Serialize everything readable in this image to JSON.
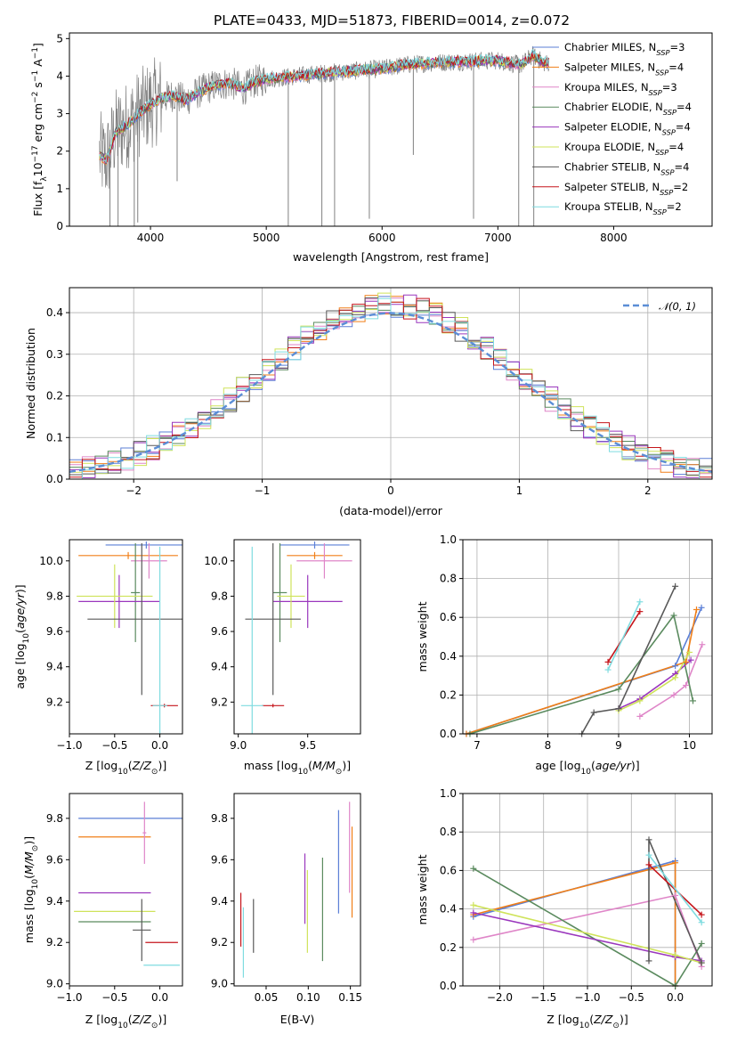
{
  "figure": {
    "title": "PLATE=0433, MJD=51873, FIBERID=0014, z=0.072"
  },
  "colors": {
    "Chabrier MILES": "#5b7fd6",
    "Salpeter MILES": "#f07f18",
    "Kroupa MILES": "#df86c8",
    "Chabrier ELODIE": "#5a8a5e",
    "Salpeter ELODIE": "#9a37bd",
    "Kroupa ELODIE": "#cfe35a",
    "Chabrier STELIB": "#595959",
    "Salpeter STELIB": "#c5151b",
    "Kroupa STELIB": "#7fdce0",
    "data": "#808080",
    "gauss": "#5b8ed6"
  },
  "chart_data": [
    {
      "id": "spectrum",
      "type": "line",
      "title": "PLATE=0433, MJD=51873, FIBERID=0014, z=0.072",
      "xlabel": "wavelength [Angstrom, rest frame]",
      "ylabel_parts": [
        "Flux [f",
        "λ",
        "10",
        "−17",
        " erg cm",
        "−2",
        " s",
        "−1",
        " A",
        "−1",
        "]"
      ],
      "xlim": [
        3300,
        8850
      ],
      "ylim": [
        0,
        5.15
      ],
      "xticks": [
        4000,
        5000,
        6000,
        7000,
        8000
      ],
      "yticks": [
        0,
        1,
        2,
        3,
        4,
        5
      ],
      "legend_position": "right",
      "legend": [
        {
          "pre": "Chabrier MILES, N",
          "sub": "SSP",
          "post": "=3",
          "color": "#5b7fd6"
        },
        {
          "pre": "Salpeter MILES, N",
          "sub": "SSP",
          "post": "=4",
          "color": "#f07f18"
        },
        {
          "pre": "Kroupa MILES, N",
          "sub": "SSP",
          "post": "=3",
          "color": "#df86c8"
        },
        {
          "pre": "Chabrier ELODIE, N",
          "sub": "SSP",
          "post": "=4",
          "color": "#5a8a5e"
        },
        {
          "pre": "Salpeter ELODIE, N",
          "sub": "SSP",
          "post": "=4",
          "color": "#9a37bd"
        },
        {
          "pre": "Kroupa ELODIE, N",
          "sub": "SSP",
          "post": "=4",
          "color": "#cfe35a"
        },
        {
          "pre": "Chabrier STELIB, N",
          "sub": "SSP",
          "post": "=4",
          "color": "#595959"
        },
        {
          "pre": "Salpeter STELIB, N",
          "sub": "SSP",
          "post": "=2",
          "color": "#c5151b"
        },
        {
          "pre": "Kroupa STELIB, N",
          "sub": "SSP",
          "post": "=2",
          "color": "#7fdce0"
        }
      ],
      "continuum": {
        "x": [
          3560,
          3620,
          3700,
          3800,
          3900,
          4000,
          4100,
          4200,
          4300,
          4400,
          4500,
          4600,
          4700,
          4800,
          4900,
          5000,
          5200,
          5400,
          5600,
          5800,
          6000,
          6200,
          6400,
          6600,
          6800,
          7000,
          7100,
          7200,
          7300,
          7400
        ],
        "y": [
          1.9,
          1.75,
          2.5,
          2.7,
          3.0,
          3.25,
          3.4,
          3.5,
          3.35,
          3.55,
          3.7,
          3.78,
          3.82,
          3.65,
          3.85,
          3.92,
          3.98,
          4.05,
          4.1,
          4.15,
          4.2,
          4.3,
          4.35,
          4.38,
          4.4,
          4.42,
          4.35,
          4.3,
          4.55,
          4.35
        ]
      },
      "absorption_lines": [
        {
          "x": 3650,
          "y": 0
        },
        {
          "x": 3720,
          "y": 0
        },
        {
          "x": 3860,
          "y": 0
        },
        {
          "x": 3890,
          "y": 0.1
        },
        {
          "x": 4230,
          "y": 1.2
        },
        {
          "x": 5190,
          "y": 0
        },
        {
          "x": 5480,
          "y": 0
        },
        {
          "x": 5590,
          "y": 0
        },
        {
          "x": 5890,
          "y": 0.2
        },
        {
          "x": 6270,
          "y": 1.9
        },
        {
          "x": 6790,
          "y": 0.2
        },
        {
          "x": 7180,
          "y": 0
        },
        {
          "x": 7310,
          "y": 0
        }
      ]
    },
    {
      "id": "residuals",
      "type": "histogram",
      "xlabel": "(data-model)/error",
      "ylabel": "Normed distribution",
      "xlim": [
        -2.5,
        2.5
      ],
      "ylim": [
        0,
        0.46
      ],
      "xticks": [
        -2,
        -1,
        0,
        1,
        2
      ],
      "yticks": [
        0.0,
        0.1,
        0.2,
        0.3,
        0.4
      ],
      "legend": "𝒩(0, 1)",
      "legend_position": "top-right",
      "grid": true,
      "bin_edges_from": -2.5,
      "bin_width": 0.1,
      "series": [
        {
          "name": "Chabrier MILES",
          "values": [
            0.03,
            0.03,
            0.04,
            0.05,
            0.05,
            0.06,
            0.07,
            0.08,
            0.09,
            0.1,
            0.11,
            0.12,
            0.14,
            0.15,
            0.17,
            0.19,
            0.2,
            0.22,
            0.24,
            0.25,
            0.27,
            0.29,
            0.31,
            0.32,
            0.33,
            0.35,
            0.36,
            0.37,
            0.37,
            0.38,
            0.38,
            0.39,
            0.38,
            0.39,
            0.37,
            0.36,
            0.35,
            0.34,
            0.33,
            0.31,
            0.29,
            0.28,
            0.26,
            0.24,
            0.22,
            0.2,
            0.18,
            0.16,
            0.14,
            0.13,
            0.11
          ]
        }
      ]
    },
    {
      "id": "age-vs-Z",
      "type": "scatter",
      "xlabel": "Z [log10(Z/Z⊙)]",
      "ylabel": "age  [log10(age/yr)]",
      "xlim": [
        -1.0,
        0.25
      ],
      "ylim": [
        9.02,
        10.12
      ],
      "xticks": [
        -1.0,
        -0.5,
        0.0
      ],
      "yticks": [
        9.2,
        9.4,
        9.6,
        9.8,
        10.0
      ],
      "points": [
        {
          "x": -0.15,
          "xerr": 0.45,
          "y": 10.09,
          "yerr": 0.02,
          "color": "#5b7fd6"
        },
        {
          "x": -0.35,
          "xerr": 0.55,
          "y": 10.03,
          "yerr": 0.02,
          "color": "#f07f18"
        },
        {
          "x": -0.12,
          "xerr": 0.2,
          "y": 10.0,
          "yerr": 0.1,
          "color": "#df86c8"
        },
        {
          "x": -0.27,
          "xerr": 0.05,
          "y": 9.82,
          "yerr": 0.28,
          "color": "#5a8a5e"
        },
        {
          "x": -0.45,
          "xerr": 0.45,
          "y": 9.77,
          "yerr": 0.15,
          "color": "#9a37bd"
        },
        {
          "x": -0.5,
          "xerr": 0.42,
          "y": 9.8,
          "yerr": 0.18,
          "color": "#cfe35a"
        },
        {
          "x": -0.2,
          "xerr": 0.6,
          "y": 9.67,
          "yerr": 0.43,
          "color": "#595959"
        },
        {
          "x": 0.05,
          "xerr": 0.15,
          "y": 9.18,
          "yerr": 0.01,
          "color": "#c5151b"
        },
        {
          "x": 0.0,
          "xerr": 0.08,
          "y": 9.18,
          "yerr": 0.9,
          "color": "#7fdce0"
        }
      ]
    },
    {
      "id": "age-vs-mass",
      "type": "scatter",
      "xlabel": "mass [log10(M/M⊙)]",
      "ylabel": "",
      "xlim": [
        8.97,
        9.88
      ],
      "ylim": [
        9.02,
        10.12
      ],
      "xticks": [
        9.0,
        9.5
      ],
      "yticks": [
        9.2,
        9.4,
        9.6,
        9.8,
        10.0
      ],
      "points": [
        {
          "x": 9.55,
          "xerr": 0.25,
          "y": 10.09,
          "yerr": 0.02,
          "color": "#5b7fd6"
        },
        {
          "x": 9.55,
          "xerr": 0.2,
          "y": 10.03,
          "yerr": 0.02,
          "color": "#f07f18"
        },
        {
          "x": 9.62,
          "xerr": 0.2,
          "y": 10.0,
          "yerr": 0.1,
          "color": "#df86c8"
        },
        {
          "x": 9.3,
          "xerr": 0.05,
          "y": 9.82,
          "yerr": 0.28,
          "color": "#5a8a5e"
        },
        {
          "x": 9.5,
          "xerr": 0.25,
          "y": 9.77,
          "yerr": 0.15,
          "color": "#9a37bd"
        },
        {
          "x": 9.38,
          "xerr": 0.1,
          "y": 9.8,
          "yerr": 0.18,
          "color": "#cfe35a"
        },
        {
          "x": 9.25,
          "xerr": 0.2,
          "y": 9.67,
          "yerr": 0.43,
          "color": "#595959"
        },
        {
          "x": 9.25,
          "xerr": 0.08,
          "y": 9.18,
          "yerr": 0.01,
          "color": "#c5151b"
        },
        {
          "x": 9.1,
          "xerr": 0.08,
          "y": 9.18,
          "yerr": 0.9,
          "color": "#7fdce0"
        }
      ]
    },
    {
      "id": "mass-weight-vs-age",
      "type": "line",
      "xlabel": "age  [log10(age/yr)]",
      "ylabel": "mass weight",
      "xlim": [
        6.8,
        10.32
      ],
      "ylim": [
        0,
        1.0
      ],
      "xticks": [
        7,
        8,
        9,
        10
      ],
      "yticks": [
        0.0,
        0.2,
        0.4,
        0.6,
        0.8,
        1.0
      ],
      "grid": true,
      "series": [
        {
          "name": "Chabrier MILES",
          "color": "#5b7fd6",
          "x": [
            6.85,
            9.8,
            10.17
          ],
          "y": [
            0.0,
            0.35,
            0.65
          ]
        },
        {
          "name": "Salpeter MILES",
          "color": "#f07f18",
          "x": [
            6.85,
            9.95,
            10.1
          ],
          "y": [
            0.0,
            0.37,
            0.64
          ]
        },
        {
          "name": "Kroupa MILES",
          "color": "#df86c8",
          "x": [
            9.3,
            9.78,
            9.95,
            10.18
          ],
          "y": [
            0.09,
            0.2,
            0.25,
            0.46
          ]
        },
        {
          "name": "Chabrier ELODIE",
          "color": "#5a8a5e",
          "x": [
            6.9,
            9.0,
            9.78,
            10.05
          ],
          "y": [
            0.0,
            0.23,
            0.61,
            0.17
          ]
        },
        {
          "name": "Salpeter ELODIE",
          "color": "#9a37bd",
          "x": [
            9.0,
            9.3,
            9.8,
            10.02
          ],
          "y": [
            0.13,
            0.18,
            0.31,
            0.38
          ]
        },
        {
          "name": "Kroupa ELODIE",
          "color": "#cfe35a",
          "x": [
            9.0,
            9.3,
            9.8,
            10.0
          ],
          "y": [
            0.12,
            0.17,
            0.29,
            0.42
          ]
        },
        {
          "name": "Chabrier STELIB",
          "color": "#595959",
          "x": [
            8.48,
            8.65,
            9.0,
            9.8
          ],
          "y": [
            0.0,
            0.11,
            0.13,
            0.76
          ]
        },
        {
          "name": "Salpeter STELIB",
          "color": "#c5151b",
          "x": [
            8.85,
            9.3
          ],
          "y": [
            0.37,
            0.63
          ]
        },
        {
          "name": "Kroupa STELIB",
          "color": "#7fdce0",
          "x": [
            8.85,
            9.3
          ],
          "y": [
            0.33,
            0.68
          ]
        }
      ]
    },
    {
      "id": "mass-vs-Z",
      "type": "scatter",
      "xlabel": "Z [log10(Z/Z⊙)]",
      "ylabel": "mass [log10(M/M⊙)]",
      "xlim": [
        -1.0,
        0.25
      ],
      "ylim": [
        8.99,
        9.92
      ],
      "xticks": [
        -1.0,
        -0.5,
        0.0
      ],
      "yticks": [
        9.0,
        9.2,
        9.4,
        9.6,
        9.8
      ],
      "points": [
        {
          "x": -0.3,
          "xerr": 0.6,
          "y": 9.8,
          "yerr": 0.0,
          "color": "#5b7fd6"
        },
        {
          "x": -0.5,
          "xerr": 0.4,
          "y": 9.71,
          "yerr": 0.0,
          "color": "#f07f18"
        },
        {
          "x": -0.17,
          "xerr": 0.02,
          "y": 9.73,
          "yerr": 0.15,
          "color": "#df86c8"
        },
        {
          "x": -0.5,
          "xerr": 0.4,
          "y": 9.3,
          "yerr": 0.0,
          "color": "#5a8a5e"
        },
        {
          "x": -0.5,
          "xerr": 0.4,
          "y": 9.44,
          "yerr": 0.0,
          "color": "#9a37bd"
        },
        {
          "x": -0.5,
          "xerr": 0.45,
          "y": 9.35,
          "yerr": 0.0,
          "color": "#cfe35a"
        },
        {
          "x": -0.2,
          "xerr": 0.1,
          "y": 9.26,
          "yerr": 0.15,
          "color": "#595959"
        },
        {
          "x": 0.02,
          "xerr": 0.18,
          "y": 9.2,
          "yerr": 0.0,
          "color": "#c5151b"
        },
        {
          "x": 0.02,
          "xerr": 0.2,
          "y": 9.09,
          "yerr": 0.0,
          "color": "#7fdce0"
        }
      ]
    },
    {
      "id": "mass-vs-EBV",
      "type": "scatter",
      "xlabel": "E(B-V)",
      "ylabel": "",
      "xlim": [
        0.012,
        0.162
      ],
      "ylim": [
        8.99,
        9.92
      ],
      "xticks": [
        0.05,
        0.1,
        0.15
      ],
      "yticks": [
        9.0,
        9.2,
        9.4,
        9.6,
        9.8
      ],
      "points": [
        {
          "x": 0.136,
          "y": 9.59,
          "yerr": 0.25,
          "color": "#5b7fd6"
        },
        {
          "x": 0.152,
          "y": 9.54,
          "yerr": 0.22,
          "color": "#f07f18"
        },
        {
          "x": 0.149,
          "y": 9.66,
          "yerr": 0.22,
          "color": "#df86c8"
        },
        {
          "x": 0.117,
          "y": 9.36,
          "yerr": 0.25,
          "color": "#5a8a5e"
        },
        {
          "x": 0.096,
          "y": 9.46,
          "yerr": 0.17,
          "color": "#9a37bd"
        },
        {
          "x": 0.099,
          "y": 9.35,
          "yerr": 0.2,
          "color": "#cfe35a"
        },
        {
          "x": 0.035,
          "y": 9.28,
          "yerr": 0.13,
          "color": "#595959"
        },
        {
          "x": 0.02,
          "y": 9.31,
          "yerr": 0.13,
          "color": "#c5151b"
        },
        {
          "x": 0.023,
          "y": 9.2,
          "yerr": 0.17,
          "color": "#7fdce0"
        }
      ]
    },
    {
      "id": "mass-weight-vs-Z",
      "type": "line",
      "xlabel": "Z [log10(Z/Z⊙)]",
      "ylabel": "mass weight",
      "xlim": [
        -2.42,
        0.42
      ],
      "ylim": [
        0,
        1.0
      ],
      "xticks": [
        -2.0,
        -1.5,
        -1.0,
        -0.5,
        0.0
      ],
      "yticks": [
        0.0,
        0.2,
        0.4,
        0.6,
        0.8,
        1.0
      ],
      "grid": true,
      "series": [
        {
          "name": "Chabrier MILES",
          "color": "#5b7fd6",
          "x": [
            -2.3,
            0.0,
            0.0
          ],
          "y": [
            0.36,
            0.65,
            0.0
          ]
        },
        {
          "name": "Salpeter MILES",
          "color": "#f07f18",
          "x": [
            -2.3,
            0.0,
            0.0
          ],
          "y": [
            0.37,
            0.64,
            0.0
          ]
        },
        {
          "name": "Kroupa MILES",
          "color": "#df86c8",
          "x": [
            -2.3,
            0.0,
            0.3
          ],
          "y": [
            0.24,
            0.47,
            0.1
          ]
        },
        {
          "name": "Chabrier ELODIE",
          "color": "#5a8a5e",
          "x": [
            -2.3,
            0.0,
            0.3
          ],
          "y": [
            0.61,
            0.0,
            0.22
          ]
        },
        {
          "name": "Salpeter ELODIE",
          "color": "#9a37bd",
          "x": [
            -2.3,
            0.0,
            0.3
          ],
          "y": [
            0.38,
            0.15,
            0.13
          ]
        },
        {
          "name": "Kroupa ELODIE",
          "color": "#cfe35a",
          "x": [
            -2.3,
            0.0,
            0.3
          ],
          "y": [
            0.42,
            0.16,
            0.12
          ]
        },
        {
          "name": "Chabrier STELIB",
          "color": "#595959",
          "x": [
            -0.3,
            -0.3,
            0.3
          ],
          "y": [
            0.13,
            0.76,
            0.12
          ]
        },
        {
          "name": "Salpeter STELIB",
          "color": "#c5151b",
          "x": [
            -0.3,
            0.3
          ],
          "y": [
            0.63,
            0.37
          ]
        },
        {
          "name": "Kroupa STELIB",
          "color": "#7fdce0",
          "x": [
            -0.3,
            0.3
          ],
          "y": [
            0.68,
            0.33
          ]
        }
      ]
    }
  ]
}
